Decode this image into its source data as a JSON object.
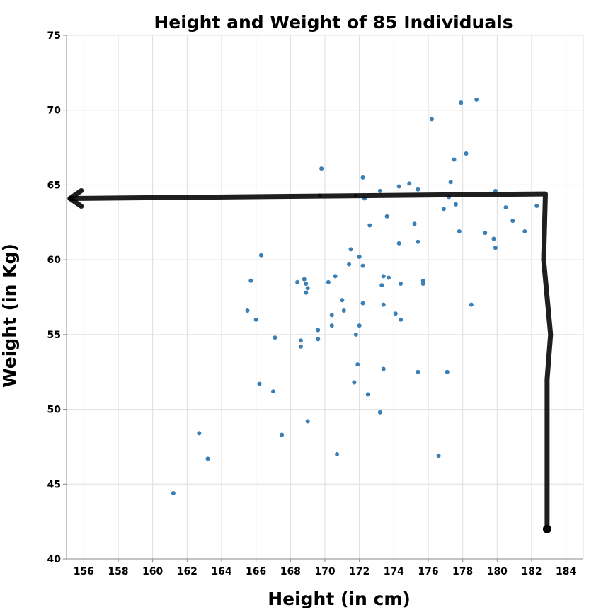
{
  "chart_data": {
    "type": "scatter",
    "title": "Height and Weight of 85 Individuals",
    "xlabel": "Height (in cm)",
    "ylabel": "Weight (in Kg)",
    "xlim": [
      155,
      185
    ],
    "ylim": [
      40,
      75
    ],
    "xticks": [
      "156",
      "158",
      "160",
      "162",
      "164",
      "166",
      "168",
      "170",
      "172",
      "174",
      "176",
      "178",
      "180",
      "182",
      "184"
    ],
    "yticks": [
      "40",
      "45",
      "50",
      "55",
      "60",
      "65",
      "70",
      "75"
    ],
    "grid": true,
    "point_color": "#3a7fb5",
    "annotation": {
      "type": "hand-drawn arrow",
      "color": "#000000",
      "path_data": [
        [
          182.9,
          42.0
        ],
        [
          182.9,
          52.0
        ],
        [
          183.1,
          55.0
        ],
        [
          182.7,
          60.0
        ],
        [
          182.8,
          64.4
        ],
        [
          155.2,
          64.1
        ]
      ]
    },
    "points": [
      {
        "x": 161.2,
        "y": 44.4
      },
      {
        "x": 162.7,
        "y": 48.4
      },
      {
        "x": 163.2,
        "y": 46.7
      },
      {
        "x": 165.5,
        "y": 56.6
      },
      {
        "x": 165.7,
        "y": 58.6
      },
      {
        "x": 166.0,
        "y": 56.0
      },
      {
        "x": 166.2,
        "y": 51.7
      },
      {
        "x": 166.3,
        "y": 60.3
      },
      {
        "x": 167.0,
        "y": 51.2
      },
      {
        "x": 167.1,
        "y": 54.8
      },
      {
        "x": 167.5,
        "y": 48.3
      },
      {
        "x": 168.4,
        "y": 58.5
      },
      {
        "x": 168.6,
        "y": 54.6
      },
      {
        "x": 168.6,
        "y": 54.2
      },
      {
        "x": 168.8,
        "y": 58.7
      },
      {
        "x": 168.9,
        "y": 58.4
      },
      {
        "x": 168.9,
        "y": 57.8
      },
      {
        "x": 169.0,
        "y": 49.2
      },
      {
        "x": 169.0,
        "y": 58.1
      },
      {
        "x": 169.6,
        "y": 55.3
      },
      {
        "x": 169.6,
        "y": 54.7
      },
      {
        "x": 169.7,
        "y": 64.3
      },
      {
        "x": 169.8,
        "y": 66.1
      },
      {
        "x": 170.2,
        "y": 58.5
      },
      {
        "x": 170.4,
        "y": 56.3
      },
      {
        "x": 170.4,
        "y": 55.6
      },
      {
        "x": 170.6,
        "y": 58.9
      },
      {
        "x": 170.7,
        "y": 47.0
      },
      {
        "x": 171.0,
        "y": 57.3
      },
      {
        "x": 171.1,
        "y": 56.6
      },
      {
        "x": 171.4,
        "y": 59.7
      },
      {
        "x": 171.5,
        "y": 60.7
      },
      {
        "x": 171.7,
        "y": 51.8
      },
      {
        "x": 171.8,
        "y": 55.0
      },
      {
        "x": 171.8,
        "y": 64.3
      },
      {
        "x": 171.9,
        "y": 53.0
      },
      {
        "x": 172.0,
        "y": 55.6
      },
      {
        "x": 172.0,
        "y": 60.2
      },
      {
        "x": 172.2,
        "y": 65.5
      },
      {
        "x": 172.2,
        "y": 59.6
      },
      {
        "x": 172.2,
        "y": 57.1
      },
      {
        "x": 172.3,
        "y": 64.1
      },
      {
        "x": 172.5,
        "y": 51.0
      },
      {
        "x": 172.6,
        "y": 62.3
      },
      {
        "x": 173.2,
        "y": 64.6
      },
      {
        "x": 173.2,
        "y": 49.8
      },
      {
        "x": 173.3,
        "y": 58.3
      },
      {
        "x": 173.4,
        "y": 52.7
      },
      {
        "x": 173.4,
        "y": 58.9
      },
      {
        "x": 173.4,
        "y": 57.0
      },
      {
        "x": 173.6,
        "y": 62.9
      },
      {
        "x": 173.7,
        "y": 58.8
      },
      {
        "x": 174.1,
        "y": 56.4
      },
      {
        "x": 174.3,
        "y": 61.1
      },
      {
        "x": 174.3,
        "y": 64.9
      },
      {
        "x": 174.4,
        "y": 58.4
      },
      {
        "x": 174.4,
        "y": 56.0
      },
      {
        "x": 174.9,
        "y": 65.1
      },
      {
        "x": 175.2,
        "y": 62.4
      },
      {
        "x": 175.4,
        "y": 64.7
      },
      {
        "x": 175.4,
        "y": 61.2
      },
      {
        "x": 175.4,
        "y": 52.5
      },
      {
        "x": 175.7,
        "y": 58.6
      },
      {
        "x": 175.7,
        "y": 58.4
      },
      {
        "x": 176.2,
        "y": 69.4
      },
      {
        "x": 176.6,
        "y": 46.9
      },
      {
        "x": 176.9,
        "y": 63.4
      },
      {
        "x": 177.1,
        "y": 52.5
      },
      {
        "x": 177.2,
        "y": 64.2
      },
      {
        "x": 177.3,
        "y": 65.2
      },
      {
        "x": 177.5,
        "y": 66.7
      },
      {
        "x": 177.6,
        "y": 63.7
      },
      {
        "x": 177.8,
        "y": 61.9
      },
      {
        "x": 177.9,
        "y": 70.5
      },
      {
        "x": 178.2,
        "y": 67.1
      },
      {
        "x": 178.5,
        "y": 57.0
      },
      {
        "x": 178.8,
        "y": 70.7
      },
      {
        "x": 179.3,
        "y": 61.8
      },
      {
        "x": 179.8,
        "y": 61.4
      },
      {
        "x": 179.9,
        "y": 60.8
      },
      {
        "x": 179.9,
        "y": 64.6
      },
      {
        "x": 180.5,
        "y": 63.5
      },
      {
        "x": 180.9,
        "y": 62.6
      },
      {
        "x": 181.6,
        "y": 61.9
      },
      {
        "x": 182.3,
        "y": 63.6
      }
    ]
  }
}
